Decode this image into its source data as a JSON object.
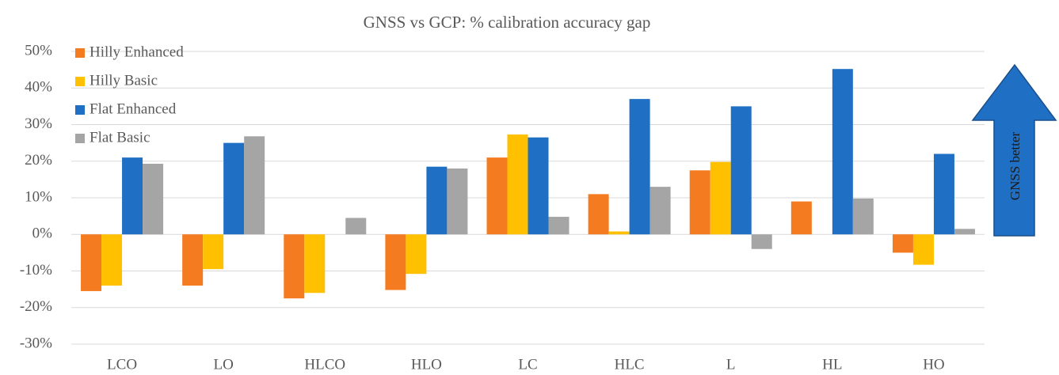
{
  "chart_data": {
    "type": "bar",
    "title": "GNSS vs GCP: % calibration accuracy gap",
    "categories": [
      "LCO",
      "LO",
      "HLCO",
      "HLO",
      "LC",
      "HLC",
      "L",
      "HL",
      "HO"
    ],
    "series": [
      {
        "name": "Hilly Enhanced",
        "color": "#f47b20",
        "values": [
          -15.5,
          -14,
          -17.5,
          -15.2,
          21,
          11,
          17.5,
          9,
          -5
        ]
      },
      {
        "name": "Hilly Basic",
        "color": "#ffc000",
        "values": [
          -14,
          -9.5,
          -16,
          -10.8,
          27.3,
          0.8,
          19.8,
          0,
          -8.3
        ]
      },
      {
        "name": "Flat Enhanced",
        "color": "#1f6fc5",
        "values": [
          21,
          25,
          0,
          18.5,
          26.5,
          37,
          35,
          45.2,
          22
        ]
      },
      {
        "name": "Flat Basic",
        "color": "#a5a5a5",
        "values": [
          19.3,
          26.8,
          4.5,
          18,
          4.8,
          13,
          -4,
          9.8,
          1.5
        ]
      }
    ],
    "ylim": [
      -30,
      50
    ],
    "yticks": [
      {
        "value": -30,
        "label": "-30%"
      },
      {
        "value": -20,
        "label": "-20%"
      },
      {
        "value": -10,
        "label": "-10%"
      },
      {
        "value": 0,
        "label": "0%"
      },
      {
        "value": 10,
        "label": "10%"
      },
      {
        "value": 20,
        "label": "20%"
      },
      {
        "value": 30,
        "label": "30%"
      },
      {
        "value": 40,
        "label": "40%"
      },
      {
        "value": 50,
        "label": "50%"
      }
    ],
    "grid": true,
    "legend": "upper left",
    "annotation": "GNSS better"
  }
}
